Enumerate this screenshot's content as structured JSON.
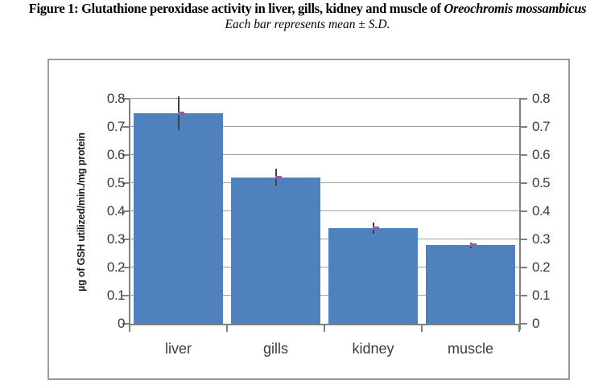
{
  "figure": {
    "title_prefix": "Figure 1: Glutathione peroxidase activity in liver, gills, kidney and muscle of ",
    "title_species": "Oreochromis mossambicus",
    "subtitle": "Each bar represents mean ± S.D."
  },
  "chart_data": {
    "type": "bar",
    "title": "Glutathione peroxidase activity in liver, gills, kidney and muscle of Oreochromis mossambicus",
    "subtitle": "Each bar represents mean ± S.D.",
    "categories": [
      "liver",
      "gills",
      "kidney",
      "muscle"
    ],
    "values": [
      0.75,
      0.52,
      0.34,
      0.28
    ],
    "errors": [
      0.06,
      0.03,
      0.02,
      0.01
    ],
    "xlabel": "",
    "ylabel": "µg of GSH utilized/min./mg protein",
    "ylim": [
      0,
      0.8
    ],
    "yticks": [
      "0",
      "0.1",
      "0.2",
      "0.3",
      "0.4",
      "0.5",
      "0.6",
      "0.7",
      "0.8"
    ],
    "grid": true,
    "legend_position": "none",
    "dual_y_axis": true,
    "colors": {
      "bar": "#4F81BD",
      "error_bar": "#404040",
      "error_marker": "#8C62A9",
      "gridline": "#A0A0A0",
      "axis": "#808080",
      "frame_border": "#9B9B9B",
      "text": "#3B3B3B"
    }
  }
}
